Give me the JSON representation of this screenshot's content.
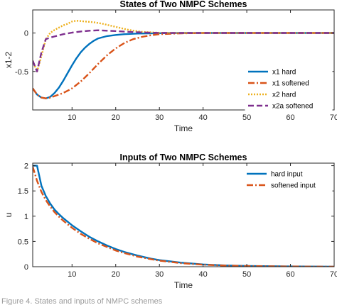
{
  "chart_data": [
    {
      "type": "line",
      "title": "States of Two NMPC Schemes",
      "xlabel": "Time",
      "ylabel": "x1-2",
      "xlim": [
        1,
        70
      ],
      "ylim": [
        -1,
        0.3
      ],
      "xticks": [
        10,
        20,
        30,
        40,
        50,
        60,
        70
      ],
      "yticks": [
        0,
        -0.5
      ],
      "legend_position": "right",
      "series": [
        {
          "name": "x1 hard",
          "color": "#0072BD",
          "style": "solid",
          "x": [
            1,
            2,
            3,
            4,
            5,
            6,
            7,
            8,
            9,
            10,
            11,
            12,
            13,
            14,
            15,
            16,
            18,
            20,
            22,
            25,
            30,
            35,
            40,
            50,
            60,
            70
          ],
          "y": [
            -0.72,
            -0.8,
            -0.84,
            -0.85,
            -0.83,
            -0.78,
            -0.71,
            -0.62,
            -0.52,
            -0.42,
            -0.33,
            -0.25,
            -0.19,
            -0.14,
            -0.1,
            -0.07,
            -0.04,
            -0.025,
            -0.015,
            -0.007,
            -0.002,
            0,
            0,
            0,
            0,
            0
          ]
        },
        {
          "name": "x1 softened",
          "color": "#D95319",
          "style": "dashdot",
          "x": [
            1,
            2,
            3,
            4,
            5,
            6,
            8,
            10,
            12,
            14,
            16,
            18,
            20,
            22,
            24,
            26,
            28,
            30,
            35,
            40,
            50,
            60,
            70
          ],
          "y": [
            -0.72,
            -0.8,
            -0.84,
            -0.85,
            -0.84,
            -0.82,
            -0.78,
            -0.72,
            -0.63,
            -0.52,
            -0.4,
            -0.29,
            -0.2,
            -0.13,
            -0.08,
            -0.05,
            -0.03,
            -0.015,
            -0.004,
            0,
            0,
            0,
            0
          ]
        },
        {
          "name": "x2 hard",
          "color": "#EDB120",
          "style": "dotted",
          "x": [
            1,
            2,
            3,
            4,
            5,
            6,
            7,
            8,
            9,
            10,
            11,
            12,
            13,
            15,
            17,
            20,
            23,
            26,
            30,
            35,
            40,
            50,
            60,
            70
          ],
          "y": [
            -0.36,
            -0.5,
            -0.3,
            -0.08,
            0.0,
            0.04,
            0.07,
            0.1,
            0.12,
            0.15,
            0.16,
            0.155,
            0.15,
            0.14,
            0.12,
            0.08,
            0.04,
            0.015,
            0.003,
            0,
            0,
            0,
            0,
            0
          ]
        },
        {
          "name": "x2a softened",
          "color": "#7E2F8E",
          "style": "dashed",
          "x": [
            1,
            2,
            3,
            4,
            5,
            6,
            8,
            10,
            12,
            14,
            16,
            18,
            20,
            22,
            25,
            28,
            30,
            35,
            40,
            50,
            60,
            70
          ],
          "y": [
            -0.36,
            -0.5,
            -0.25,
            -0.08,
            -0.06,
            -0.045,
            -0.015,
            0.005,
            0.02,
            0.03,
            0.035,
            0.03,
            0.025,
            0.018,
            0.01,
            0.004,
            0.002,
            0,
            0,
            0,
            0,
            0
          ]
        }
      ]
    },
    {
      "type": "line",
      "title": "Inputs of Two NMPC Schemes",
      "xlabel": "Time",
      "ylabel": "u",
      "xlim": [
        1,
        70
      ],
      "ylim": [
        0,
        2.05
      ],
      "xticks": [
        10,
        20,
        30,
        40,
        50,
        60,
        70
      ],
      "yticks": [
        0,
        0.5,
        1,
        1.5,
        2
      ],
      "legend_position": "top-right",
      "series": [
        {
          "name": "hard input",
          "color": "#0072BD",
          "style": "solid",
          "x": [
            1,
            2,
            3,
            4,
            5,
            6,
            7,
            8,
            10,
            12,
            14,
            16,
            18,
            20,
            22,
            25,
            28,
            30,
            35,
            40,
            45,
            50,
            60,
            70
          ],
          "y": [
            2.0,
            2.0,
            1.6,
            1.4,
            1.25,
            1.13,
            1.04,
            0.96,
            0.82,
            0.7,
            0.59,
            0.5,
            0.42,
            0.35,
            0.29,
            0.22,
            0.16,
            0.13,
            0.08,
            0.045,
            0.025,
            0.015,
            0.005,
            0.0
          ]
        },
        {
          "name": "softened input",
          "color": "#D95319",
          "style": "dashdot",
          "x": [
            1,
            2,
            3,
            4,
            5,
            6,
            7,
            8,
            10,
            12,
            14,
            16,
            18,
            20,
            22,
            25,
            28,
            30,
            35,
            40,
            45,
            50,
            60,
            70
          ],
          "y": [
            1.98,
            1.7,
            1.48,
            1.32,
            1.19,
            1.08,
            0.99,
            0.91,
            0.77,
            0.65,
            0.55,
            0.46,
            0.39,
            0.32,
            0.27,
            0.2,
            0.15,
            0.12,
            0.07,
            0.04,
            0.022,
            0.012,
            0.004,
            0.0
          ]
        }
      ]
    }
  ],
  "caption": "Figure 4. States and inputs of NMPC schemes"
}
